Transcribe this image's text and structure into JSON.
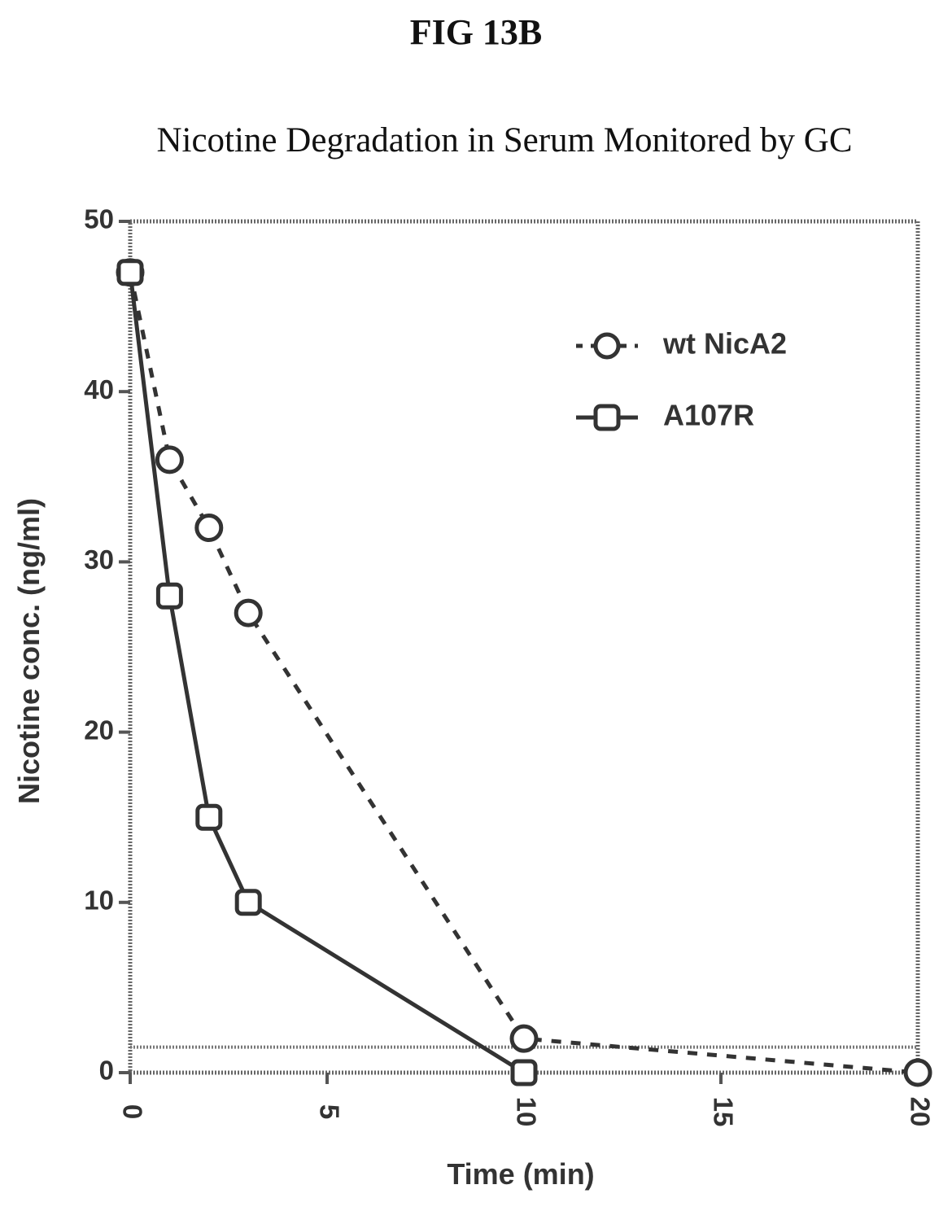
{
  "figure_label": "FIG 13B",
  "chart_data": {
    "type": "line",
    "title": "Nicotine Degradation in Serum Monitored by GC",
    "xlabel": "Time (min)",
    "ylabel": "Nicotine conc. (ng/ml)",
    "xlim": [
      0,
      20
    ],
    "ylim": [
      0,
      50
    ],
    "x_ticks": [
      0,
      5,
      10,
      15,
      20
    ],
    "y_ticks": [
      0,
      10,
      20,
      30,
      40,
      50
    ],
    "grid": false,
    "legend_position": "top-right",
    "series": [
      {
        "name": "wt NicA2",
        "line_style": "dashed",
        "marker": "circle",
        "x": [
          0,
          1,
          2,
          3,
          10,
          20
        ],
        "y": [
          47,
          36,
          32,
          27,
          2,
          0
        ]
      },
      {
        "name": "A107R",
        "line_style": "solid",
        "marker": "square",
        "x": [
          0,
          1,
          2,
          3,
          10
        ],
        "y": [
          47,
          28,
          15,
          10,
          0
        ]
      }
    ],
    "reference_line": {
      "y": 1.5,
      "style": "dotted"
    }
  }
}
